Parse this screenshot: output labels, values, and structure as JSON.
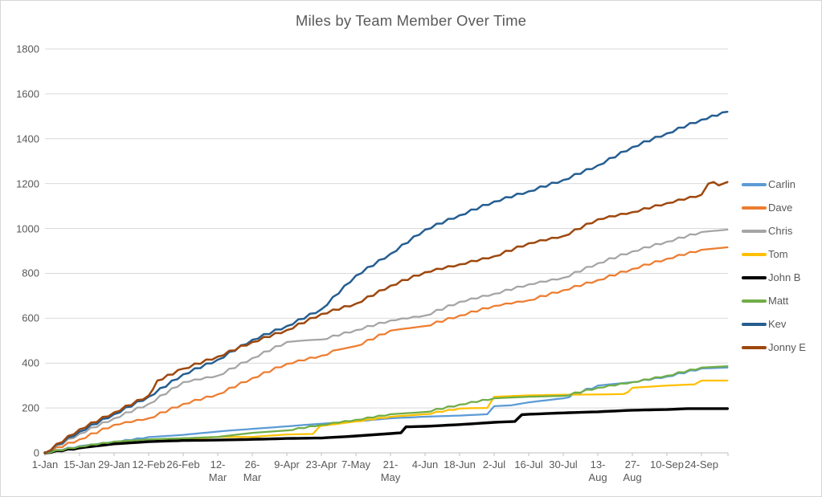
{
  "chart_data": {
    "type": "line",
    "title": "Miles by Team Member Over Time",
    "x_unit": "tick_index (each tick = 14 days starting 1-Jan; series x values are tick-index fractions)",
    "x_tick_labels": [
      [
        "1-Jan"
      ],
      [
        "15-Jan"
      ],
      [
        "29-Jan"
      ],
      [
        "12-Feb"
      ],
      [
        "26-Feb"
      ],
      [
        "12-",
        "Mar"
      ],
      [
        "26-",
        "Mar"
      ],
      [
        "9-Apr"
      ],
      [
        "23-Apr"
      ],
      [
        "7-May"
      ],
      [
        "21-",
        "May"
      ],
      [
        "4-Jun"
      ],
      [
        "18-Jun"
      ],
      [
        "2-Jul"
      ],
      [
        "16-Jul"
      ],
      [
        "30-Jul"
      ],
      [
        "13-",
        "Aug"
      ],
      [
        "27-",
        "Aug"
      ],
      [
        "10-Sep"
      ],
      [
        "24-Sep"
      ]
    ],
    "y_ticks": [
      0,
      200,
      400,
      600,
      800,
      1000,
      1200,
      1400,
      1600,
      1800
    ],
    "ylim": [
      0,
      1800
    ],
    "ylabel": "",
    "xlabel": "",
    "grid": "horizontal",
    "grid_color": "#D9D9D9",
    "axis_line_color": "#BFBFBF",
    "axis_text_color": "#595959",
    "legend_position": "right",
    "series": [
      {
        "name": "Carlin",
        "color": "#5B9BD5",
        "width": 2.25,
        "points": [
          [
            0,
            0
          ],
          [
            1,
            30
          ],
          [
            2,
            48
          ],
          [
            3,
            70
          ],
          [
            4,
            80
          ],
          [
            5,
            95
          ],
          [
            6,
            107
          ],
          [
            7,
            118
          ],
          [
            8,
            130
          ],
          [
            9,
            140
          ],
          [
            10,
            154
          ],
          [
            11,
            161
          ],
          [
            12,
            166
          ],
          [
            12.8,
            172
          ],
          [
            13,
            208
          ],
          [
            13.5,
            212
          ],
          [
            14,
            225
          ],
          [
            15,
            243
          ],
          [
            16,
            300
          ],
          [
            17,
            315
          ],
          [
            18,
            340
          ],
          [
            19,
            376
          ],
          [
            19.75,
            380
          ]
        ]
      },
      {
        "name": "Dave",
        "color": "#ED7D31",
        "width": 2.25,
        "points": [
          [
            0,
            0
          ],
          [
            1,
            60
          ],
          [
            2,
            125
          ],
          [
            3,
            154
          ],
          [
            4,
            218
          ],
          [
            5,
            261
          ],
          [
            6,
            333
          ],
          [
            7,
            397
          ],
          [
            8,
            433
          ],
          [
            8.5,
            460
          ],
          [
            9,
            476
          ],
          [
            10,
            545
          ],
          [
            11,
            565
          ],
          [
            12,
            612
          ],
          [
            13,
            655
          ],
          [
            14,
            680
          ],
          [
            15,
            725
          ],
          [
            16,
            770
          ],
          [
            17,
            820
          ],
          [
            18,
            865
          ],
          [
            19,
            905
          ],
          [
            19.75,
            916
          ]
        ]
      },
      {
        "name": "Chris",
        "color": "#A5A5A5",
        "width": 2.25,
        "points": [
          [
            0,
            0
          ],
          [
            1,
            85
          ],
          [
            2,
            154
          ],
          [
            3,
            218
          ],
          [
            4,
            315
          ],
          [
            5,
            344
          ],
          [
            6,
            422
          ],
          [
            7,
            494
          ],
          [
            7.6,
            502
          ],
          [
            8,
            505
          ],
          [
            9,
            547
          ],
          [
            10,
            590
          ],
          [
            11,
            612
          ],
          [
            12,
            673
          ],
          [
            13,
            709
          ],
          [
            14,
            751
          ],
          [
            15,
            780
          ],
          [
            16,
            845
          ],
          [
            17,
            898
          ],
          [
            18,
            941
          ],
          [
            19,
            984
          ],
          [
            19.75,
            995
          ]
        ]
      },
      {
        "name": "Tom",
        "color": "#FFC000",
        "width": 2.25,
        "points": [
          [
            0,
            0
          ],
          [
            1,
            25
          ],
          [
            2,
            45
          ],
          [
            3,
            55
          ],
          [
            4,
            60
          ],
          [
            5,
            71
          ],
          [
            6,
            71
          ],
          [
            7,
            82
          ],
          [
            7.75,
            84
          ],
          [
            7.95,
            118
          ],
          [
            8,
            120
          ],
          [
            9,
            140
          ],
          [
            10,
            161
          ],
          [
            11,
            172
          ],
          [
            12,
            198
          ],
          [
            12.8,
            200
          ],
          [
            13,
            250
          ],
          [
            14,
            256
          ],
          [
            15,
            259
          ],
          [
            16,
            260
          ],
          [
            16.75,
            262
          ],
          [
            17,
            290
          ],
          [
            18,
            300
          ],
          [
            18.8,
            305
          ],
          [
            19,
            322
          ],
          [
            19.75,
            322
          ]
        ]
      },
      {
        "name": "John B",
        "color": "#000000",
        "width": 3.4,
        "points": [
          [
            0,
            0
          ],
          [
            1,
            22
          ],
          [
            2,
            40
          ],
          [
            3,
            50
          ],
          [
            4,
            55
          ],
          [
            5,
            57
          ],
          [
            6,
            60
          ],
          [
            7,
            64
          ],
          [
            8,
            66
          ],
          [
            9,
            75
          ],
          [
            10,
            86
          ],
          [
            10.3,
            89
          ],
          [
            10.45,
            116
          ],
          [
            11,
            118
          ],
          [
            12,
            126
          ],
          [
            13,
            136
          ],
          [
            13.6,
            140
          ],
          [
            13.8,
            170
          ],
          [
            14,
            172
          ],
          [
            15,
            178
          ],
          [
            16,
            183
          ],
          [
            17,
            190
          ],
          [
            18,
            193
          ],
          [
            18.6,
            197
          ],
          [
            19,
            197
          ],
          [
            19.75,
            197
          ]
        ]
      },
      {
        "name": "Matt",
        "color": "#70AD47",
        "width": 2.25,
        "points": [
          [
            0,
            0
          ],
          [
            1,
            28
          ],
          [
            2,
            50
          ],
          [
            3,
            60
          ],
          [
            4,
            65
          ],
          [
            5,
            71
          ],
          [
            6,
            89
          ],
          [
            7,
            100
          ],
          [
            8,
            125
          ],
          [
            9,
            147
          ],
          [
            10,
            172
          ],
          [
            11,
            182
          ],
          [
            12,
            215
          ],
          [
            13,
            243
          ],
          [
            14,
            250
          ],
          [
            15,
            254
          ],
          [
            16,
            290
          ],
          [
            17,
            315
          ],
          [
            18,
            344
          ],
          [
            19,
            380
          ],
          [
            19.75,
            386
          ]
        ]
      },
      {
        "name": "Kev",
        "color": "#255E91",
        "width": 2.5,
        "points": [
          [
            0,
            0
          ],
          [
            1,
            95
          ],
          [
            2,
            172
          ],
          [
            3,
            250
          ],
          [
            4,
            350
          ],
          [
            5,
            415
          ],
          [
            6,
            504
          ],
          [
            7,
            565
          ],
          [
            8,
            640
          ],
          [
            9,
            790
          ],
          [
            10,
            887
          ],
          [
            11,
            995
          ],
          [
            12,
            1059
          ],
          [
            13,
            1120
          ],
          [
            14,
            1166
          ],
          [
            15,
            1216
          ],
          [
            16,
            1281
          ],
          [
            17,
            1363
          ],
          [
            18,
            1424
          ],
          [
            19,
            1485
          ],
          [
            19.75,
            1520
          ]
        ]
      },
      {
        "name": "Jonny E",
        "color": "#9E480E",
        "width": 2.5,
        "points": [
          [
            0,
            0
          ],
          [
            1,
            105
          ],
          [
            2,
            180
          ],
          [
            3,
            255
          ],
          [
            3.25,
            322
          ],
          [
            4,
            375
          ],
          [
            5,
            429
          ],
          [
            6,
            494
          ],
          [
            7,
            547
          ],
          [
            8,
            619
          ],
          [
            9,
            665
          ],
          [
            10,
            745
          ],
          [
            11,
            805
          ],
          [
            12,
            840
          ],
          [
            13,
            876
          ],
          [
            14,
            934
          ],
          [
            15,
            966
          ],
          [
            16,
            1041
          ],
          [
            17,
            1073
          ],
          [
            18,
            1113
          ],
          [
            19,
            1150
          ],
          [
            19.2,
            1200
          ],
          [
            19.35,
            1207
          ],
          [
            19.5,
            1192
          ],
          [
            19.75,
            1207
          ]
        ]
      }
    ]
  }
}
